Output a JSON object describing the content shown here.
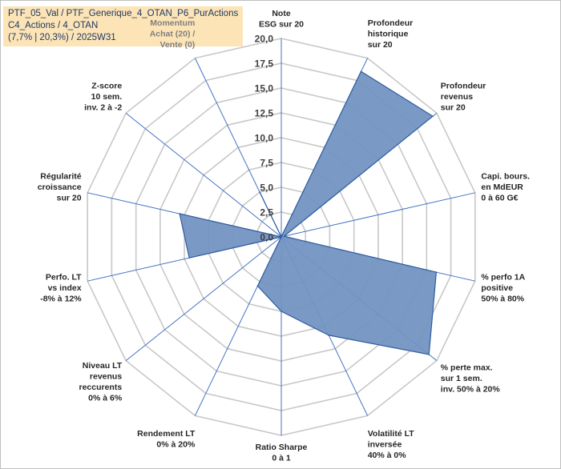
{
  "header": {
    "line1": "PTF_05_Val / PTF_Generique_4_OTAN_P6_PurActions",
    "line2": "C4_Actions / 4_OTAN",
    "line3": "(7,7% | 20,3%) / 2025W31"
  },
  "chart_data": {
    "type": "radar",
    "rmin": 0,
    "rmax": 20,
    "tick_labels": [
      "0,0",
      "2,5",
      "5,0",
      "7,5",
      "10,0",
      "12,5",
      "15,0",
      "17,5",
      "20,0"
    ],
    "categories": [
      [
        "Note",
        "ESG sur 20"
      ],
      [
        "Profondeur",
        "historique",
        "sur 20"
      ],
      [
        "Profondeur",
        "revenus",
        "sur 20"
      ],
      [
        "Capi. bours.",
        "en MdEUR",
        "0 à 60 G€"
      ],
      [
        "% perfo 1A",
        "positive",
        "50% à 80%"
      ],
      [
        "% perte max.",
        "sur 1 sem.",
        "inv. 50% à 20%"
      ],
      [
        "Volatilité LT",
        "inversée",
        "40% à 0%"
      ],
      [
        "Ratio Sharpe",
        "0 à 1"
      ],
      [
        "Rendement LT",
        "0% à 20%"
      ],
      [
        "Niveau LT",
        "revenus",
        "reccurents",
        "0% à 6%"
      ],
      [
        "Perfo. LT",
        "vs index",
        "-8% à 12%"
      ],
      [
        "Régularité",
        "croissance",
        "sur 20"
      ],
      [
        "Z-score",
        "10 sem.",
        "inv. 2 à -2"
      ],
      [
        "Momentum",
        "Achat (20) /",
        "Vente (0)"
      ]
    ],
    "values": [
      0,
      18.5,
      19.5,
      0.3,
      16,
      19,
      11,
      7.5,
      5.5,
      0,
      9.5,
      10.5,
      0,
      5
    ],
    "colors": {
      "fill": "#7394c2",
      "stroke": "#2e5d9f",
      "grid": "#c8c8c8",
      "axis": "#4472c4"
    }
  }
}
